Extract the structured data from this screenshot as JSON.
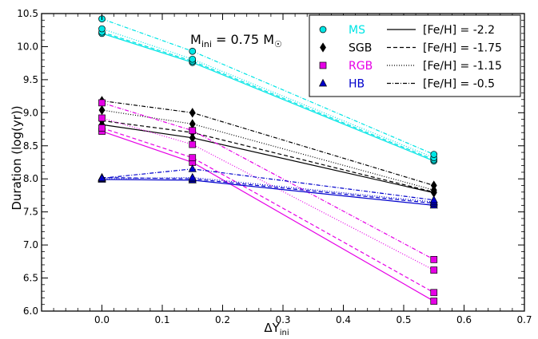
{
  "chart_data": {
    "type": "line",
    "xlabel": "ΔY",
    "xlabel_sub": "ini",
    "ylabel": "Duration (log(yr))",
    "annotation": {
      "main": "M",
      "sub": "ini",
      "rest": " = 0.75 M",
      "symbol": "☉"
    },
    "xlim": [
      -0.1,
      0.7
    ],
    "ylim": [
      6.0,
      10.5
    ],
    "xticks": [
      "0.0",
      "0.1",
      "0.2",
      "0.3",
      "0.4",
      "0.5",
      "0.6",
      "0.7"
    ],
    "xtick_values": [
      0.0,
      0.1,
      0.2,
      0.3,
      0.4,
      0.5,
      0.6,
      0.7
    ],
    "yticks": [
      "6.0",
      "6.5",
      "7.0",
      "7.5",
      "8.0",
      "8.5",
      "9.0",
      "9.5",
      "10.0",
      "10.5"
    ],
    "ytick_values": [
      6.0,
      6.5,
      7.0,
      7.5,
      8.0,
      8.5,
      9.0,
      9.5,
      10.0,
      10.5
    ],
    "x": [
      0.0,
      0.15,
      0.55
    ],
    "legend_position": "top-right",
    "phases": [
      {
        "label": "MS",
        "color": "#00e5e5",
        "marker": "circle"
      },
      {
        "label": "SGB",
        "color": "#000000",
        "marker": "diamond"
      },
      {
        "label": "RGB",
        "color": "#e600e6",
        "marker": "square"
      },
      {
        "label": "HB",
        "color": "#0000cc",
        "marker": "triangle"
      }
    ],
    "metallicities": [
      {
        "label": "[Fe/H] = -2.2",
        "dash": "solid"
      },
      {
        "label": "[Fe/H] = -1.75",
        "dash": "dashed"
      },
      {
        "label": "[Fe/H] = -1.15",
        "dash": "dotted"
      },
      {
        "label": "[Fe/H] = -0.5",
        "dash": "dashdot"
      }
    ],
    "series": [
      {
        "phase": "MS",
        "feh": "-2.2",
        "values": [
          10.2,
          9.76,
          8.27
        ]
      },
      {
        "phase": "MS",
        "feh": "-1.75",
        "values": [
          10.22,
          9.78,
          8.29
        ]
      },
      {
        "phase": "MS",
        "feh": "-1.15",
        "values": [
          10.27,
          9.81,
          8.32
        ]
      },
      {
        "phase": "MS",
        "feh": "-0.5",
        "values": [
          10.42,
          9.93,
          8.37
        ]
      },
      {
        "phase": "SGB",
        "feh": "-2.2",
        "values": [
          8.82,
          8.62,
          7.79
        ]
      },
      {
        "phase": "SGB",
        "feh": "-1.75",
        "values": [
          8.88,
          8.7,
          7.8
        ]
      },
      {
        "phase": "SGB",
        "feh": "-1.15",
        "values": [
          9.04,
          8.83,
          7.83
        ]
      },
      {
        "phase": "SGB",
        "feh": "-0.5",
        "values": [
          9.18,
          9.0,
          7.9
        ]
      },
      {
        "phase": "RGB",
        "feh": "-2.2",
        "values": [
          8.72,
          8.25,
          6.15
        ]
      },
      {
        "phase": "RGB",
        "feh": "-1.75",
        "values": [
          8.77,
          8.32,
          6.28
        ]
      },
      {
        "phase": "RGB",
        "feh": "-1.15",
        "values": [
          8.92,
          8.52,
          6.62
        ]
      },
      {
        "phase": "RGB",
        "feh": "-0.5",
        "values": [
          9.15,
          8.73,
          6.78
        ]
      },
      {
        "phase": "HB",
        "feh": "-2.2",
        "values": [
          7.99,
          7.98,
          7.6
        ]
      },
      {
        "phase": "HB",
        "feh": "-1.75",
        "values": [
          8.02,
          8.0,
          7.63
        ]
      },
      {
        "phase": "HB",
        "feh": "-1.15",
        "values": [
          8.0,
          8.02,
          7.65
        ]
      },
      {
        "phase": "HB",
        "feh": "-0.5",
        "values": [
          8.01,
          8.15,
          7.68
        ]
      }
    ]
  }
}
